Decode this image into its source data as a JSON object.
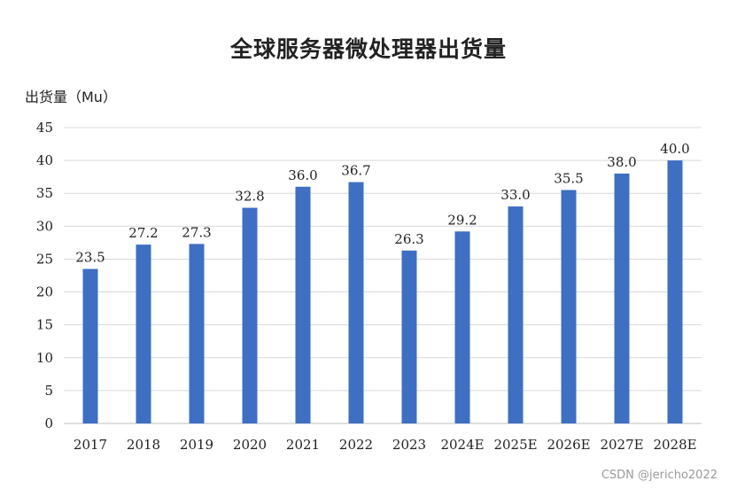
{
  "chart_data": {
    "type": "bar",
    "title": "全球服务器微处理器出货量",
    "ylabel": "出货量（Mu）",
    "xlabel": "",
    "categories": [
      "2017",
      "2018",
      "2019",
      "2020",
      "2021",
      "2022",
      "2023",
      "2024E",
      "2025E",
      "2026E",
      "2027E",
      "2028E"
    ],
    "values": [
      23.5,
      27.2,
      27.3,
      32.8,
      36.0,
      36.7,
      26.3,
      29.2,
      33.0,
      35.5,
      38.0,
      40.0
    ],
    "value_labels": [
      "23.5",
      "27.2",
      "27.3",
      "32.8",
      "36.0",
      "36.7",
      "26.3",
      "29.2",
      "33.0",
      "35.5",
      "38.0",
      "40.0"
    ],
    "ylim": [
      0,
      45
    ],
    "yticks": [
      0,
      5,
      10,
      15,
      20,
      25,
      30,
      35,
      40,
      45
    ],
    "grid": true,
    "legend": "none",
    "bar_color": "#3e6fc2"
  },
  "watermark": "CSDN @jericho2022"
}
